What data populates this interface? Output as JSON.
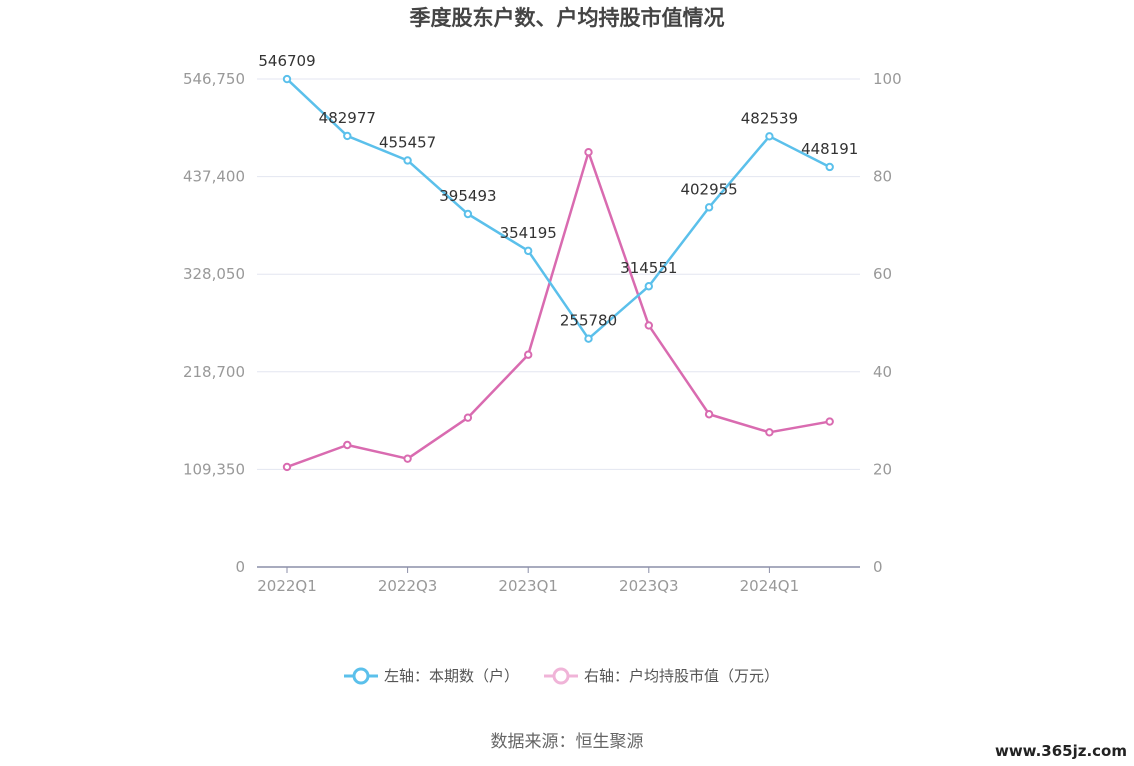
{
  "chart_data": {
    "type": "line",
    "title": "季度股东户数、户均持股市值情况",
    "categories": [
      "2022Q1",
      "2022Q2",
      "2022Q3",
      "2022Q4",
      "2023Q1",
      "2023Q2",
      "2023Q3",
      "2023Q4",
      "2024Q1",
      "2024Q2"
    ],
    "x_tick_labels": [
      "2022Q1",
      "2022Q3",
      "2023Q1",
      "2023Q3",
      "2024Q1"
    ],
    "left_axis": {
      "ticks": [
        "0",
        "109,350",
        "218,700",
        "328,050",
        "437,400",
        "546,750"
      ],
      "ylim": [
        0,
        546750
      ]
    },
    "right_axis": {
      "ticks": [
        "0",
        "20",
        "40",
        "60",
        "80",
        "100"
      ],
      "ylim": [
        0,
        100
      ]
    },
    "series": [
      {
        "name": "左轴：本期数（户）",
        "axis": "left",
        "color": "#5bc0eb",
        "values": [
          546709,
          482977,
          455457,
          395493,
          354195,
          255780,
          314551,
          402955,
          482539,
          448191
        ],
        "labels": [
          "546709",
          "482977",
          "455457",
          "395493",
          "354195",
          "255780",
          "314551",
          "402955",
          "482539",
          "448191"
        ]
      },
      {
        "name": "右轴：户均持股市值（万元）",
        "axis": "right",
        "color": "#d96bb0",
        "values": [
          20.5,
          25.0,
          22.2,
          30.6,
          43.5,
          85.0,
          49.5,
          31.3,
          27.6,
          29.8
        ]
      }
    ],
    "grid": true,
    "legend_position": "bottom-center"
  },
  "source": "数据来源：恒生聚源",
  "watermark": "www.365jz.com"
}
